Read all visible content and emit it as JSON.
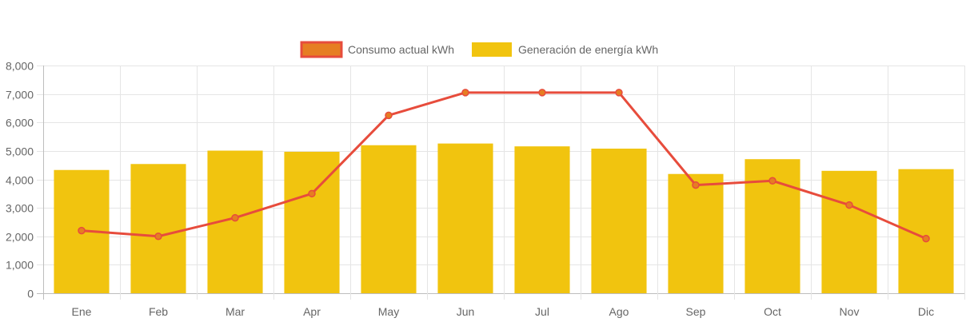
{
  "chart_data": {
    "type": "bar",
    "title": "",
    "xlabel": "",
    "ylabel": "",
    "ylim": [
      0,
      8000
    ],
    "yticks": [
      0,
      1000,
      2000,
      3000,
      4000,
      5000,
      6000,
      7000,
      8000
    ],
    "ytick_labels": [
      "0",
      "1,000",
      "2,000",
      "3,000",
      "4,000",
      "5,000",
      "6,000",
      "7,000",
      "8,000"
    ],
    "grid": true,
    "legend_position": "top-center",
    "categories": [
      "Ene",
      "Feb",
      "Mar",
      "Apr",
      "May",
      "Jun",
      "Jul",
      "Ago",
      "Sep",
      "Oct",
      "Nov",
      "Dic"
    ],
    "series": [
      {
        "name": "Consumo actual kWh",
        "type": "line",
        "color": "#e74c3c",
        "marker_fill": "#e67e22",
        "values": [
          2200,
          2000,
          2650,
          3500,
          6250,
          7050,
          7050,
          7050,
          3800,
          3950,
          3100,
          1920
        ]
      },
      {
        "name": "Generación de energía kWh",
        "type": "bar",
        "color": "#f1c40f",
        "values": [
          4330,
          4540,
          5010,
          4970,
          5200,
          5260,
          5160,
          5080,
          4190,
          4710,
          4300,
          4360
        ]
      }
    ]
  }
}
